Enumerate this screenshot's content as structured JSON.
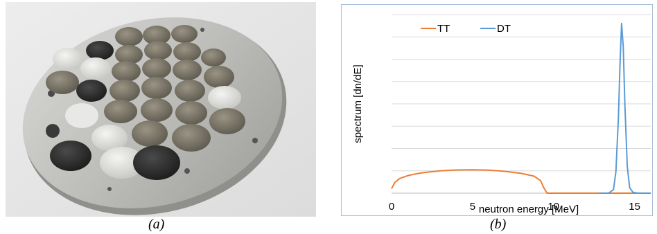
{
  "panels": {
    "a": {
      "caption": "(a)"
    },
    "b": {
      "caption": "(b)"
    }
  },
  "chart_data": {
    "type": "line",
    "title": "",
    "xlabel": "neutron energy [MeV]",
    "ylabel": "spectrum [dn/dE]",
    "xlim": [
      0,
      16
    ],
    "ylim": [
      0,
      1
    ],
    "xticks": [
      0,
      5,
      10,
      15
    ],
    "grid": {
      "horizontal": true,
      "vertical": false
    },
    "legend": {
      "placement": "top",
      "entries": [
        "TT",
        "DT"
      ]
    },
    "series": [
      {
        "name": "TT",
        "color": "#ed7d31",
        "x": [
          0,
          0.2,
          0.5,
          1,
          1.5,
          2,
          3,
          4,
          5,
          6,
          7,
          8,
          8.8,
          9.2,
          9.4,
          9.6,
          9.8,
          12,
          14,
          16
        ],
        "y": [
          0.025,
          0.06,
          0.082,
          0.098,
          0.108,
          0.115,
          0.125,
          0.13,
          0.131,
          0.129,
          0.122,
          0.111,
          0.095,
          0.07,
          0.03,
          0.0,
          0.0,
          0.0,
          0.0,
          0.0
        ]
      },
      {
        "name": "DT",
        "color": "#5b9bd5",
        "x": [
          12.8,
          13.4,
          13.7,
          13.85,
          14.0,
          14.1,
          14.2,
          14.3,
          14.4,
          14.55,
          14.7,
          14.9,
          15.2,
          16
        ],
        "y": [
          0,
          0,
          0.02,
          0.12,
          0.42,
          0.72,
          0.95,
          0.82,
          0.5,
          0.15,
          0.03,
          0.005,
          0,
          0
        ]
      }
    ]
  }
}
